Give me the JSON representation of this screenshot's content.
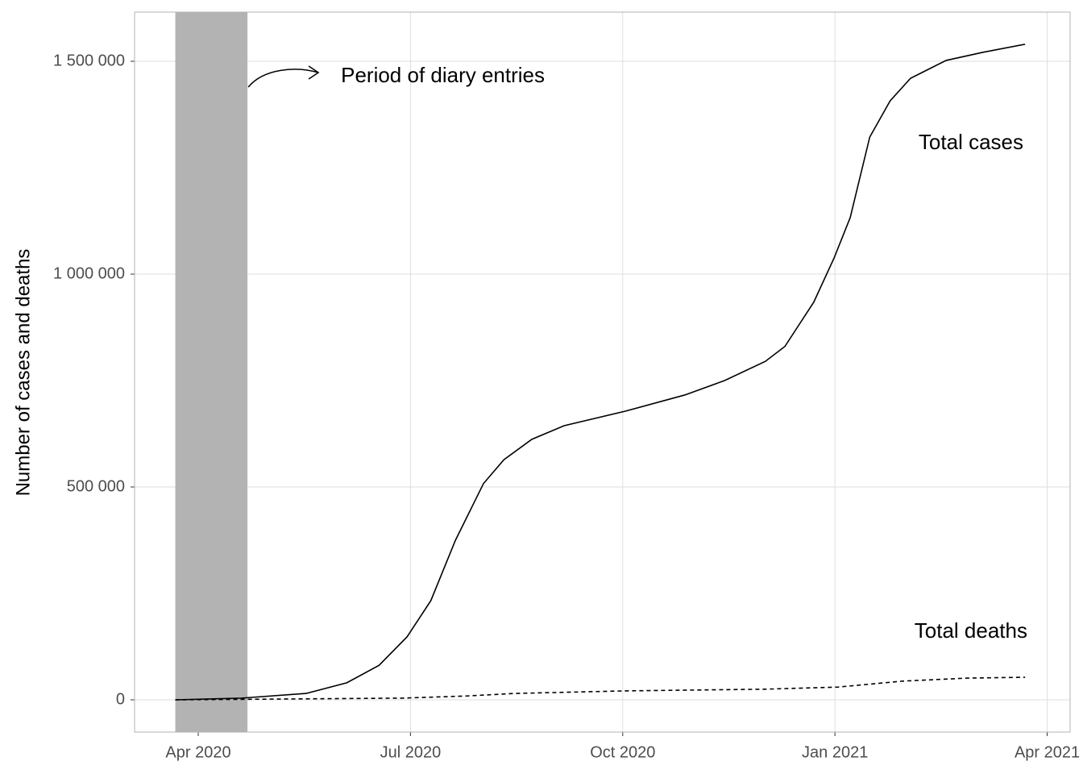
{
  "chart_data": {
    "type": "line",
    "ylabel": "Number of cases and deaths",
    "xlim": [
      2020.175,
      2021.277
    ],
    "ylim": [
      -75758,
      1615530
    ],
    "xticks": [
      {
        "value": 2020.25,
        "label": "Apr 2020"
      },
      {
        "value": 2020.5,
        "label": "Jul 2020"
      },
      {
        "value": 2020.75,
        "label": "Oct 2020"
      },
      {
        "value": 2021.0,
        "label": "Jan 2021"
      },
      {
        "value": 2021.25,
        "label": "Apr 2021"
      }
    ],
    "yticks": [
      {
        "value": 0,
        "label": "0"
      },
      {
        "value": 500000,
        "label": "500 000"
      },
      {
        "value": 1000000,
        "label": "1 000 000"
      },
      {
        "value": 1500000,
        "label": "1 500 000"
      }
    ],
    "grid": true,
    "shaded_period": {
      "x": [
        2020.223,
        2020.308
      ],
      "color": "#b3b3b3",
      "label": "Period of diary entries"
    },
    "series": [
      {
        "name": "Total cases",
        "color": "#000000",
        "dash": false,
        "x": [
          2020.223,
          2020.301,
          2020.377,
          2020.425,
          2020.463,
          2020.496,
          2020.524,
          2020.553,
          2020.586,
          2020.61,
          2020.643,
          2020.681,
          2020.753,
          2020.823,
          2020.87,
          2020.918,
          2020.941,
          2020.975,
          2020.999,
          2021.018,
          2021.041,
          2021.065,
          2021.089,
          2021.131,
          2021.174,
          2021.224
        ],
        "values": [
          0,
          4000,
          15000,
          40000,
          81000,
          148000,
          233000,
          375000,
          508000,
          564000,
          612000,
          644000,
          678000,
          716000,
          750000,
          795000,
          830000,
          934000,
          1038000,
          1133000,
          1322000,
          1407000,
          1460000,
          1502000,
          1521000,
          1540000
        ]
      },
      {
        "name": "Total deaths",
        "color": "#000000",
        "dash": true,
        "x": [
          2020.223,
          2020.49,
          2020.566,
          2020.623,
          2020.753,
          2020.918,
          2021.004,
          2021.08,
          2021.156,
          2021.224
        ],
        "values": [
          0,
          4000,
          9000,
          15000,
          21000,
          25000,
          30000,
          44000,
          51000,
          53000
        ]
      }
    ]
  }
}
